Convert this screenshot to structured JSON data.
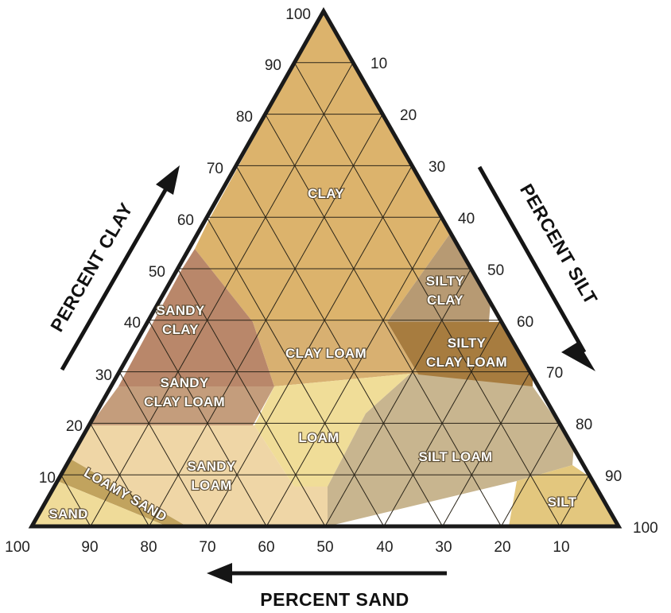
{
  "diagram": {
    "type": "soil-texture-triangle",
    "axes": {
      "clay": {
        "title": "PERCENT CLAY",
        "ticks": [
          "10",
          "20",
          "30",
          "40",
          "50",
          "60",
          "70",
          "80",
          "90",
          "100"
        ]
      },
      "silt": {
        "title": "PERCENT SILT",
        "ticks": [
          "10",
          "20",
          "30",
          "40",
          "50",
          "60",
          "70",
          "80",
          "90",
          "100"
        ]
      },
      "sand": {
        "title": "PERCENT SAND",
        "ticks": [
          "100",
          "90",
          "80",
          "70",
          "60",
          "50",
          "40",
          "30",
          "20",
          "10"
        ]
      }
    },
    "regions": [
      {
        "key": "clay",
        "lines": [
          "CLAY"
        ],
        "color": "#dcb36c"
      },
      {
        "key": "silty_clay",
        "lines": [
          "SILTY",
          "CLAY"
        ],
        "color": "#b79a73"
      },
      {
        "key": "silty_clay_loam",
        "lines": [
          "SILTY",
          "CLAY LOAM"
        ],
        "color": "#a77c3f"
      },
      {
        "key": "sandy_clay",
        "lines": [
          "SANDY",
          "CLAY"
        ],
        "color": "#b9876a"
      },
      {
        "key": "clay_loam",
        "lines": [
          "CLAY LOAM"
        ],
        "color": "#d8b071"
      },
      {
        "key": "sandy_clay_loam",
        "lines": [
          "SANDY",
          "CLAY LOAM"
        ],
        "color": "#c49d7c"
      },
      {
        "key": "loam",
        "lines": [
          "LOAM"
        ],
        "color": "#f0dd98"
      },
      {
        "key": "silt_loam",
        "lines": [
          "SILT LOAM"
        ],
        "color": "#c8b58f"
      },
      {
        "key": "sandy_loam",
        "lines": [
          "SANDY",
          "LOAM"
        ],
        "color": "#efd6a6"
      },
      {
        "key": "loamy_sand",
        "lines": [
          "LOAMY SAND"
        ],
        "color": "#c1a35e"
      },
      {
        "key": "sand",
        "lines": [
          "SAND"
        ],
        "color": "#efdb99"
      },
      {
        "key": "silt",
        "lines": [
          "SILT"
        ],
        "color": "#e3c77e"
      }
    ],
    "colors": {
      "outline": "#1a1a1a",
      "grid": "#2a2418",
      "arrow": "#151515"
    }
  }
}
